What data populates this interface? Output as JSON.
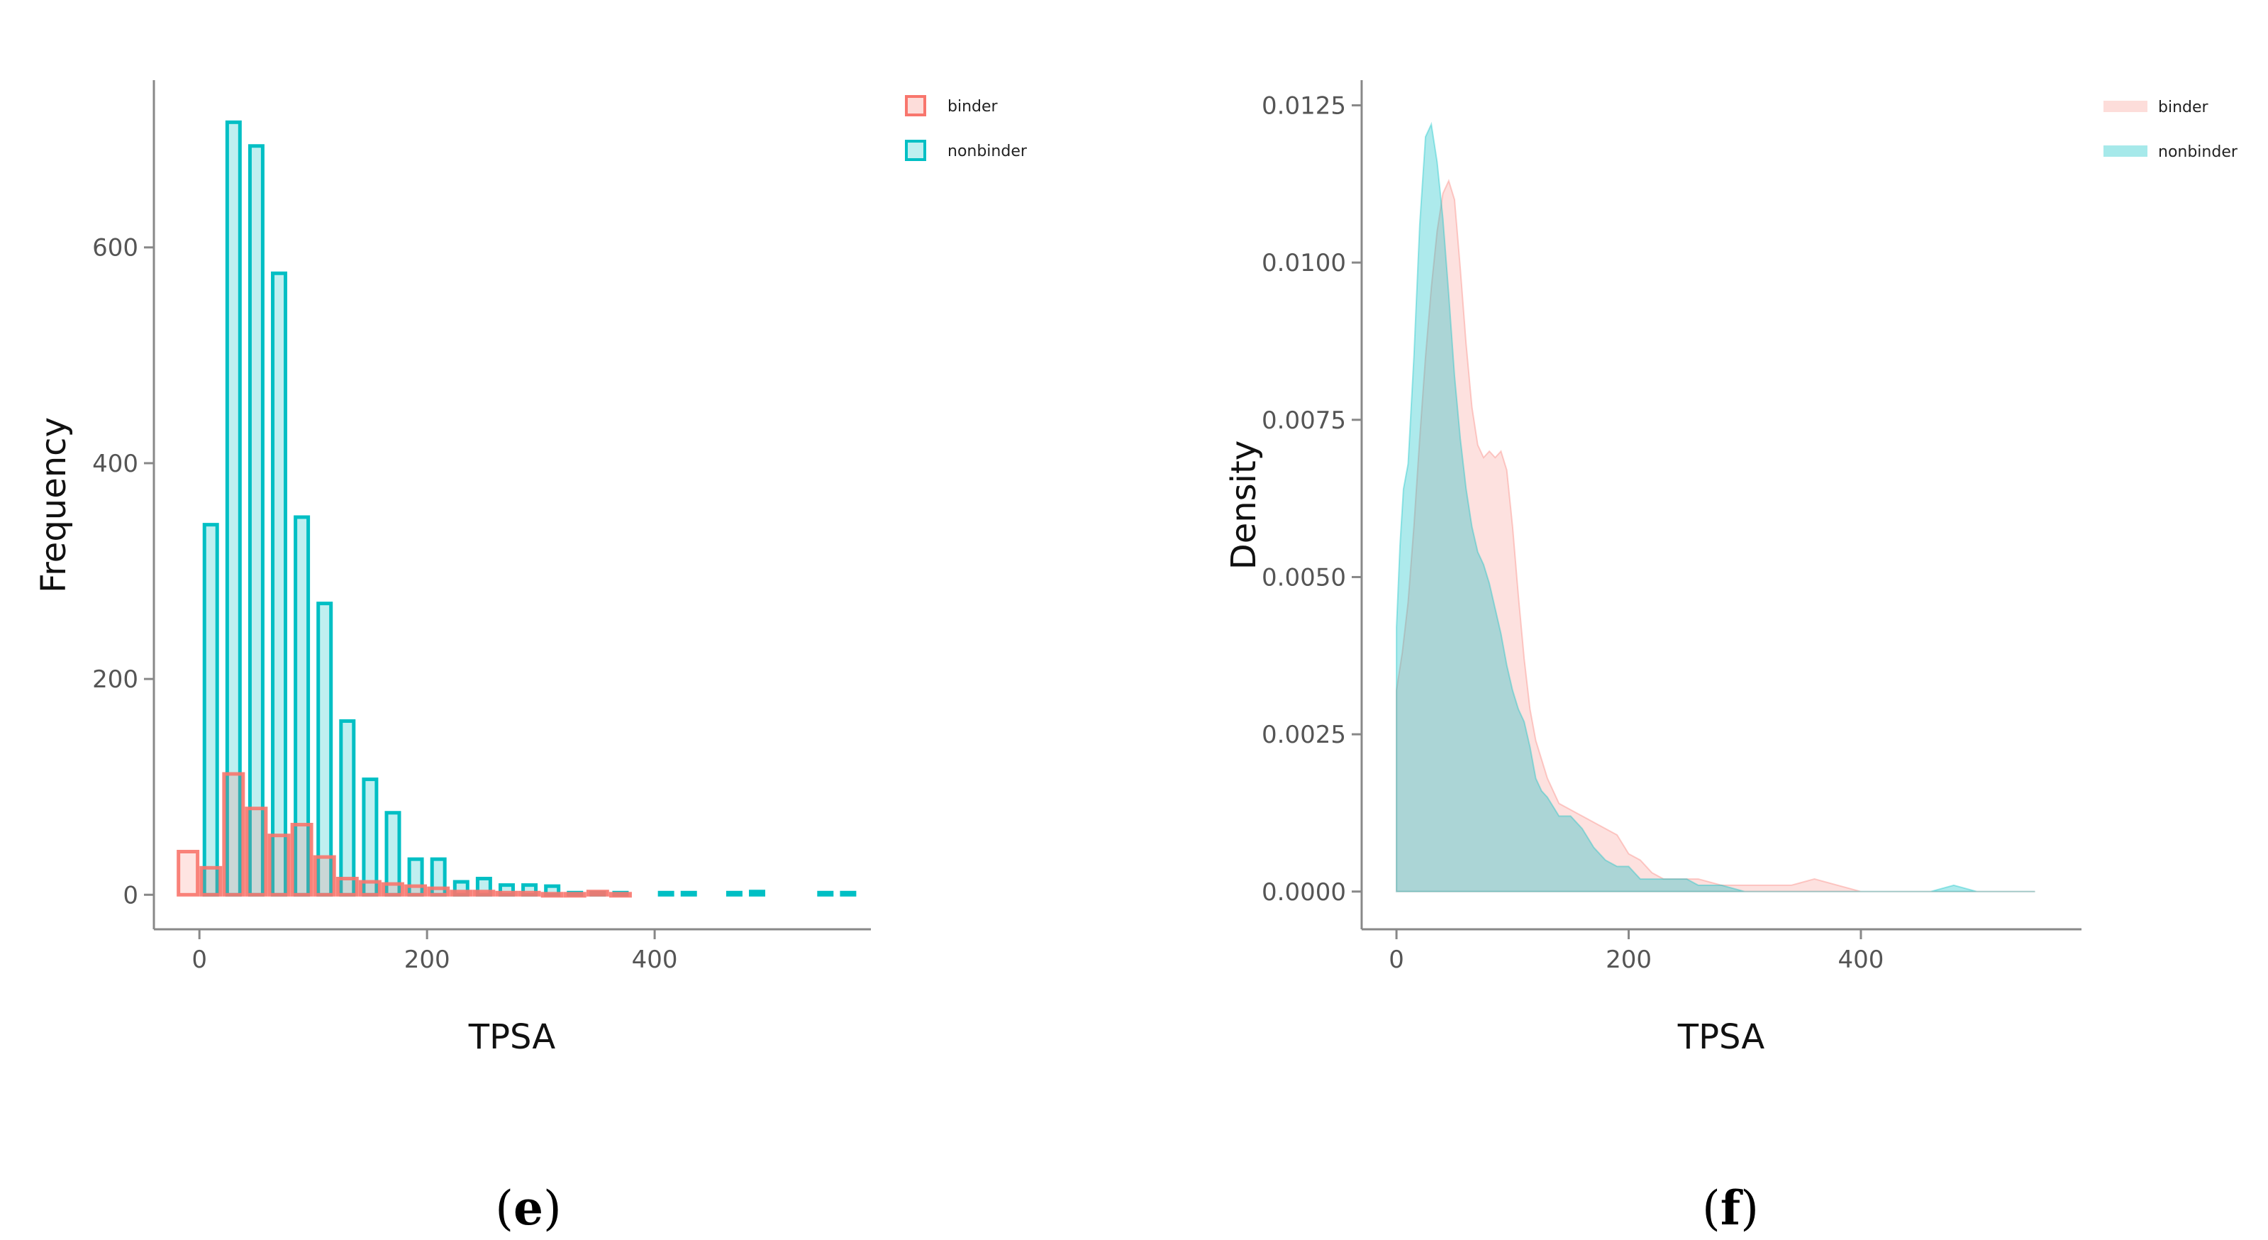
{
  "chart_data": [
    {
      "type": "bar",
      "panel_label": "e",
      "xlabel": "TPSA",
      "ylabel": "Frequency",
      "xlim": [
        -40,
        590
      ],
      "ylim": [
        -32,
        755
      ],
      "x_ticks": [
        0,
        200,
        400
      ],
      "y_ticks": [
        0,
        200,
        400,
        600
      ],
      "legend_position": "top-right",
      "bin_width": 20,
      "series": [
        {
          "name": "binder",
          "color": "#F8766D",
          "x": [
            -10,
            10,
            30,
            50,
            70,
            90,
            110,
            130,
            150,
            170,
            190,
            210,
            230,
            250,
            270,
            290,
            310,
            330,
            350,
            370
          ],
          "values": [
            40,
            25,
            112,
            80,
            55,
            65,
            35,
            15,
            12,
            10,
            8,
            6,
            3,
            3,
            2,
            2,
            1,
            1,
            3,
            1
          ]
        },
        {
          "name": "nonbinder",
          "color": "#00BFC4",
          "x": [
            10,
            30,
            50,
            70,
            90,
            110,
            130,
            150,
            170,
            190,
            210,
            230,
            250,
            270,
            290,
            310,
            330,
            350,
            370,
            410,
            430,
            470,
            490,
            550,
            570
          ],
          "values": [
            343,
            716,
            694,
            576,
            350,
            270,
            161,
            107,
            76,
            33,
            33,
            12,
            15,
            9,
            9,
            8,
            2,
            2,
            2,
            2,
            2,
            2,
            3,
            2,
            2
          ]
        }
      ]
    },
    {
      "type": "area",
      "panel_label": "f",
      "xlabel": "TPSA",
      "ylabel": "Density",
      "xlim": [
        -30,
        590
      ],
      "ylim": [
        -0.0006,
        0.0129
      ],
      "x_ticks": [
        0,
        200,
        400
      ],
      "y_ticks": [
        0.0,
        0.0025,
        0.005,
        0.0075,
        0.01,
        0.0125
      ],
      "y_tick_labels": [
        "0.0000",
        "0.0025",
        "0.0050",
        "0.0075",
        "0.0100",
        "0.0125"
      ],
      "legend_position": "top-right",
      "series": [
        {
          "name": "binder",
          "color": "#F8766D",
          "x": [
            0,
            5,
            10,
            15,
            20,
            25,
            30,
            35,
            40,
            45,
            50,
            55,
            60,
            65,
            70,
            75,
            80,
            85,
            90,
            95,
            100,
            105,
            110,
            115,
            120,
            125,
            130,
            140,
            150,
            160,
            170,
            180,
            190,
            200,
            210,
            220,
            230,
            240,
            250,
            260,
            280,
            300,
            320,
            340,
            360,
            380,
            400,
            450,
            500,
            550
          ],
          "values": [
            0.0032,
            0.0038,
            0.0046,
            0.0058,
            0.0072,
            0.0085,
            0.0096,
            0.0105,
            0.0111,
            0.0113,
            0.011,
            0.0099,
            0.0087,
            0.0077,
            0.0071,
            0.0069,
            0.007,
            0.0069,
            0.007,
            0.0067,
            0.0058,
            0.0047,
            0.0037,
            0.0029,
            0.0024,
            0.0021,
            0.0018,
            0.0014,
            0.0013,
            0.0012,
            0.0011,
            0.001,
            0.0009,
            0.0006,
            0.0005,
            0.0003,
            0.0002,
            0.0002,
            0.0002,
            0.0002,
            0.0001,
            0.0001,
            0.0001,
            0.0001,
            0.0002,
            0.0001,
            0.0,
            0.0,
            0.0,
            0.0
          ]
        },
        {
          "name": "nonbinder",
          "color": "#00BFC4",
          "x": [
            0,
            3,
            6,
            10,
            15,
            20,
            25,
            30,
            35,
            40,
            45,
            50,
            55,
            60,
            65,
            70,
            75,
            80,
            85,
            90,
            95,
            100,
            105,
            110,
            115,
            120,
            125,
            130,
            140,
            150,
            160,
            170,
            180,
            190,
            200,
            210,
            220,
            230,
            240,
            250,
            260,
            280,
            300,
            320,
            340,
            360,
            380,
            400,
            420,
            440,
            460,
            480,
            500,
            520,
            550
          ],
          "values": [
            0.0042,
            0.0055,
            0.0064,
            0.0068,
            0.0085,
            0.0106,
            0.012,
            0.0122,
            0.0116,
            0.0107,
            0.0095,
            0.0082,
            0.0072,
            0.0064,
            0.0058,
            0.0054,
            0.0052,
            0.0049,
            0.0045,
            0.0041,
            0.0036,
            0.0032,
            0.0029,
            0.0027,
            0.0023,
            0.0018,
            0.0016,
            0.0015,
            0.0012,
            0.0012,
            0.001,
            0.0007,
            0.0005,
            0.0004,
            0.0004,
            0.0002,
            0.0002,
            0.0002,
            0.0002,
            0.0002,
            0.0001,
            0.0001,
            0.0,
            0.0,
            0.0,
            0.0,
            0.0,
            0.0,
            0.0,
            0.0,
            0.0,
            0.0001,
            0.0,
            0.0,
            0.0
          ]
        }
      ]
    }
  ]
}
